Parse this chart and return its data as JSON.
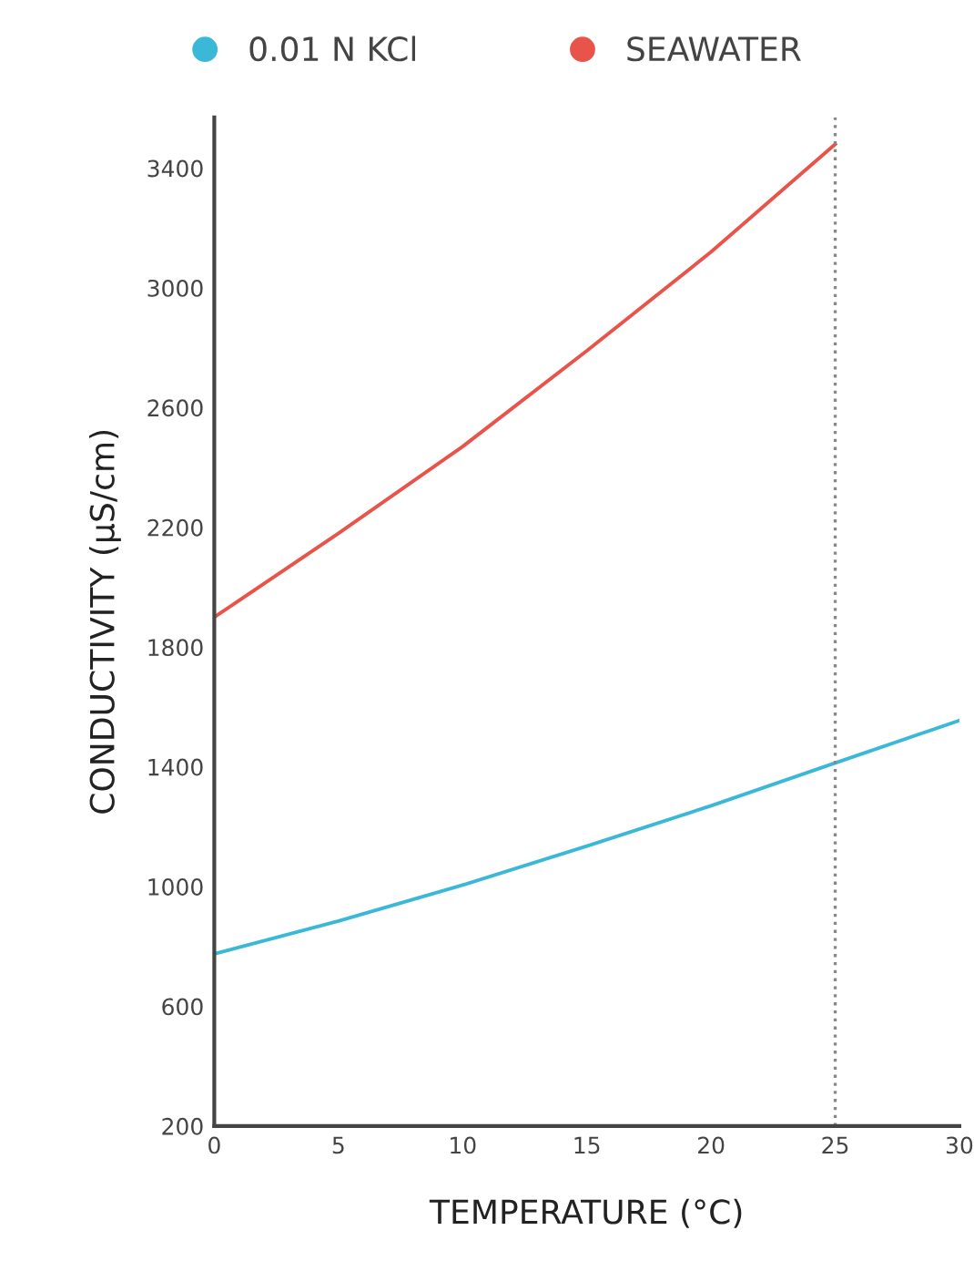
{
  "chart_data": {
    "type": "line",
    "xlabel": "TEMPERATURE (°C)",
    "ylabel": "CONDUCTIVITY (µS/cm)",
    "x": [
      0,
      5,
      10,
      15,
      20,
      25,
      30
    ],
    "series": [
      {
        "name": "0.01 N KCl",
        "color": "#3bb8d8",
        "values": [
          775,
          885,
          1005,
          1135,
          1270,
          1413,
          1555
        ]
      },
      {
        "name": "SEAWATER",
        "color": "#e8544a",
        "values": [
          1900,
          2180,
          2470,
          2790,
          3120,
          3480,
          null
        ]
      }
    ],
    "xlim": [
      0,
      30
    ],
    "xticks": [
      0,
      5,
      10,
      15,
      20,
      25,
      30
    ],
    "ylim": [
      200,
      3570
    ],
    "yticks": [
      200,
      600,
      1000,
      1400,
      1800,
      2200,
      2600,
      3000,
      3400
    ],
    "ref_lines": [
      {
        "axis": "x",
        "value": 25,
        "color": "#888888",
        "line_style": "dotted"
      }
    ],
    "grid": false,
    "legend": "top",
    "marker": "none",
    "line_style": "solid"
  }
}
